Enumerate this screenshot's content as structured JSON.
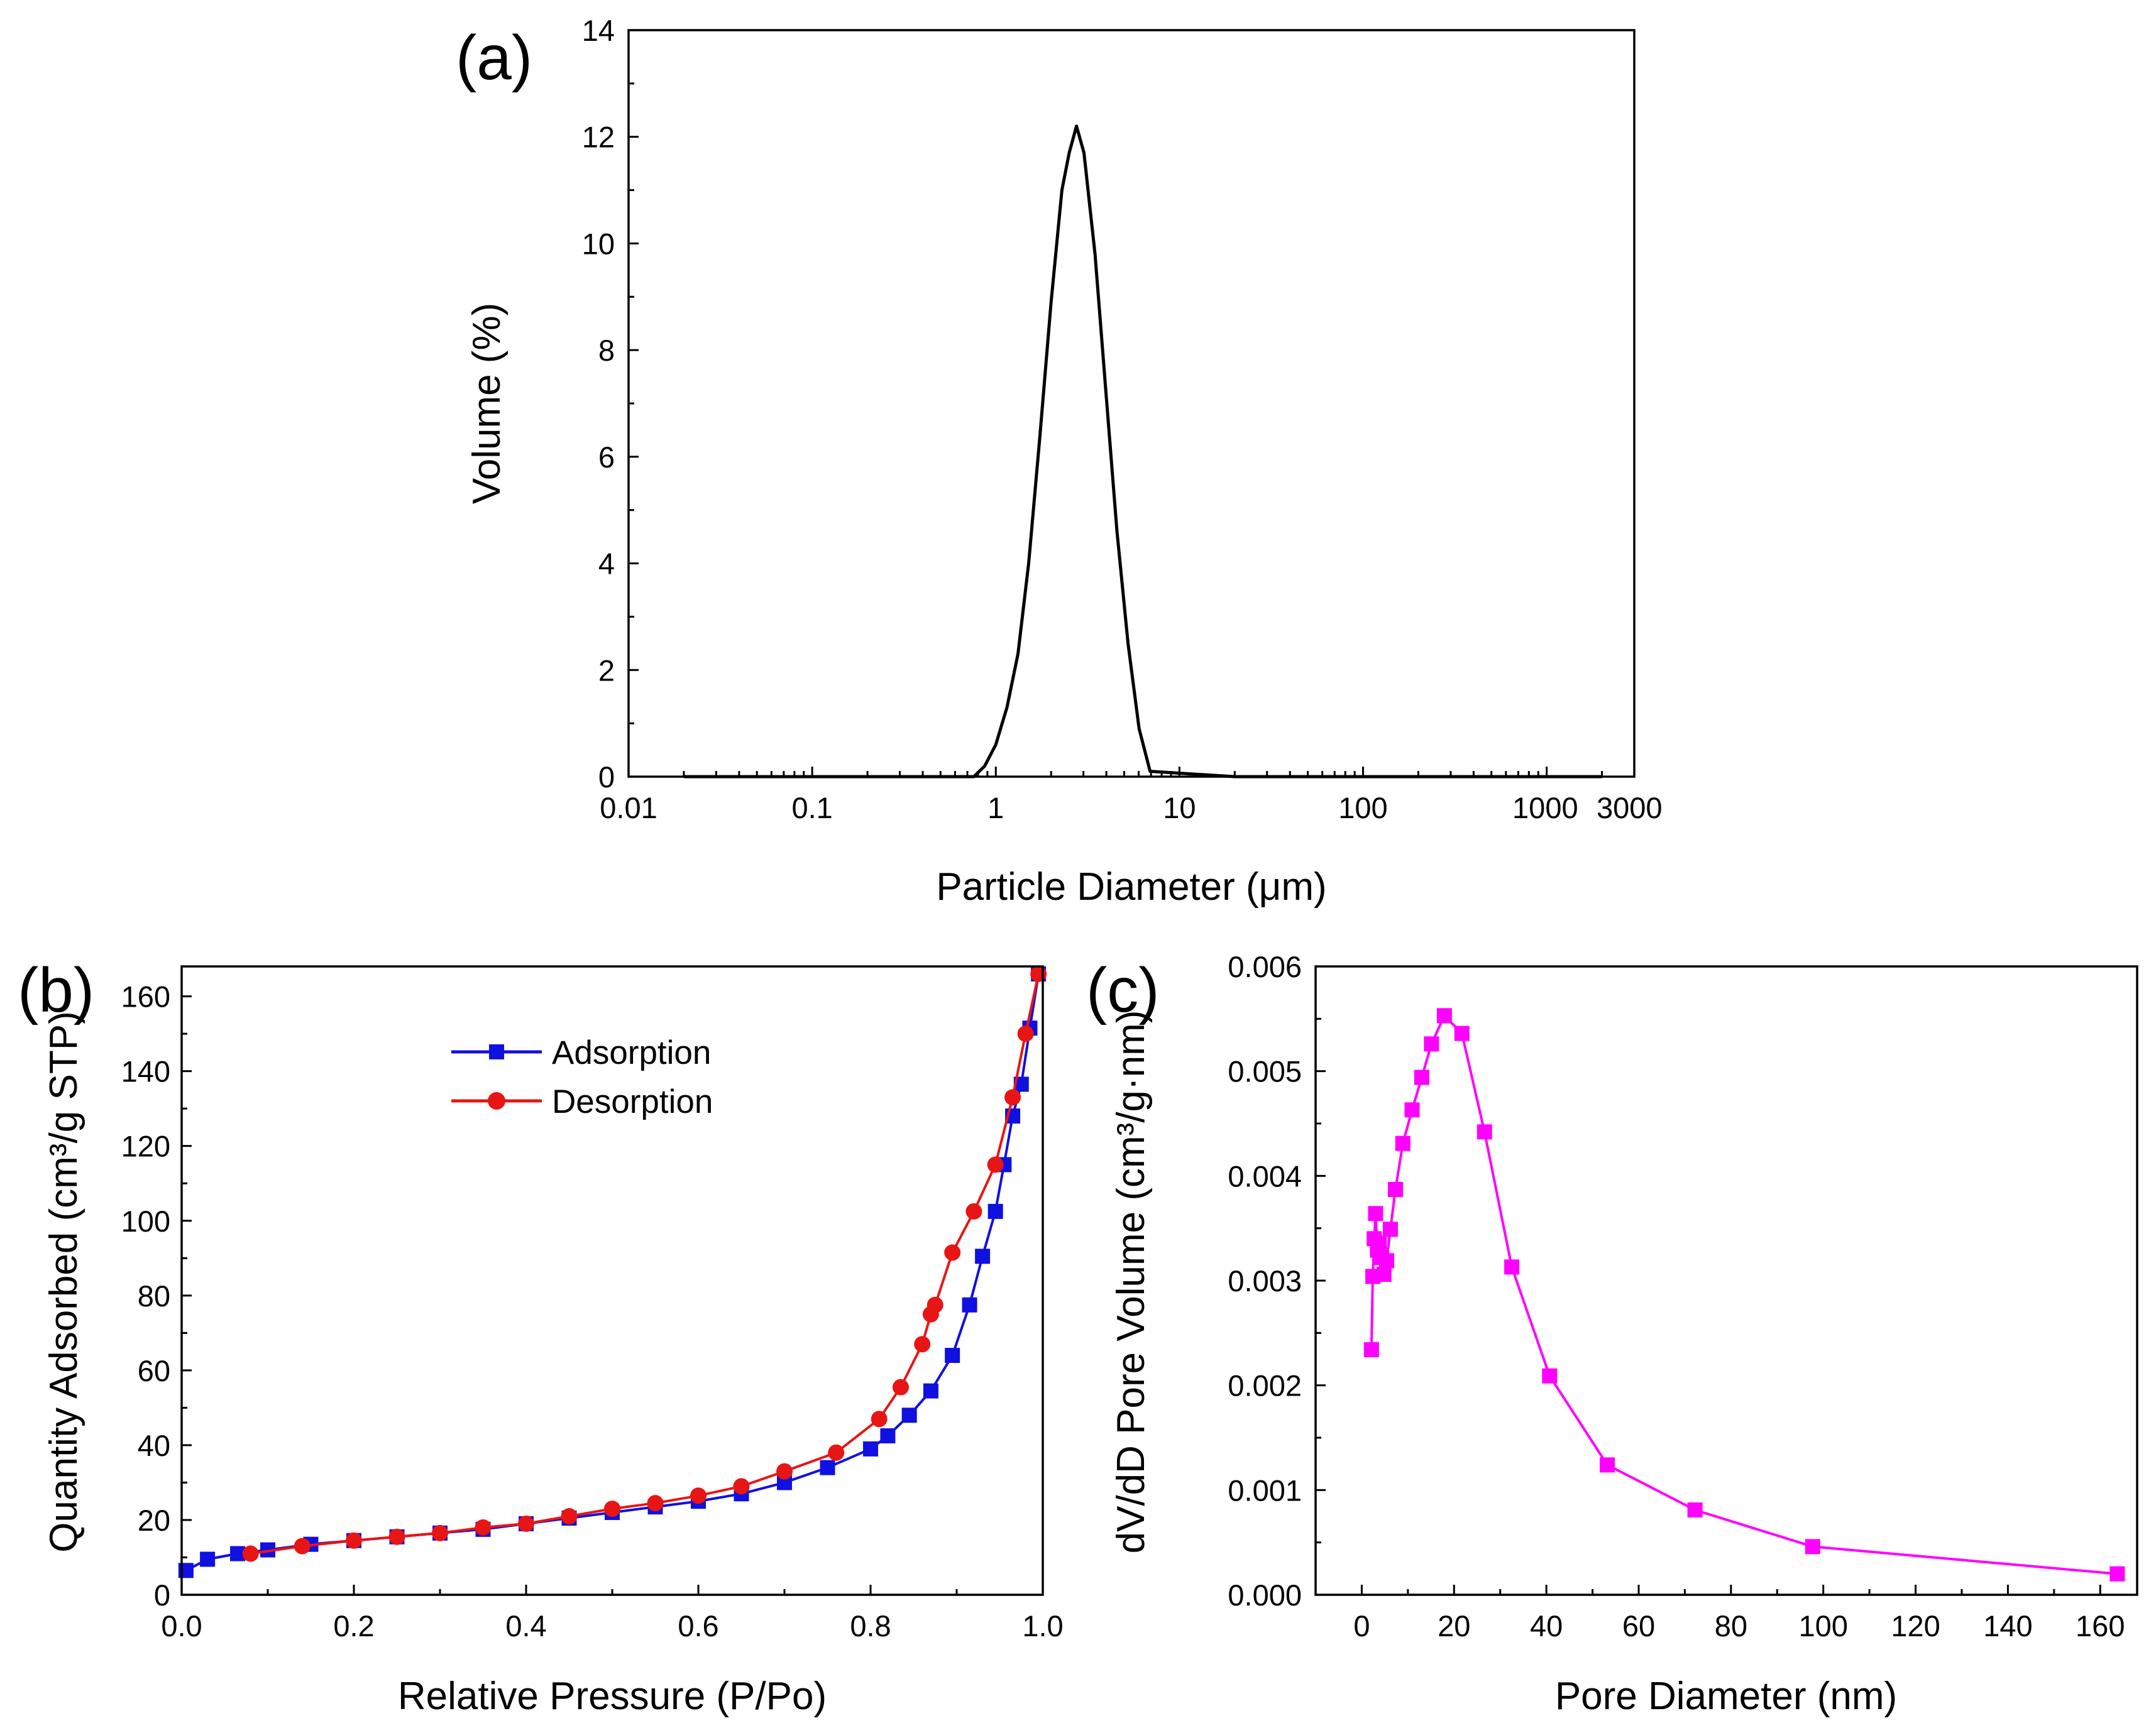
{
  "chart_data": [
    {
      "id": "a",
      "type": "line",
      "panel_label": "(a)",
      "xscale": "log",
      "xlabel": "Particle Diameter (μm)",
      "ylabel": "Volume (%)",
      "xlim": [
        0.01,
        3000
      ],
      "ylim": [
        0,
        14
      ],
      "xticks": [
        0.01,
        0.1,
        1,
        10,
        100,
        1000,
        3000
      ],
      "xtick_labels": [
        "0.01",
        "0.1",
        "1",
        "10",
        "100",
        "1000",
        "3000"
      ],
      "yticks": [
        0,
        2,
        4,
        6,
        8,
        10,
        12,
        14
      ],
      "ytick_labels": [
        "0",
        "2",
        "4",
        "6",
        "8",
        "10",
        "12",
        "14"
      ],
      "legend": "none",
      "grid": false,
      "series": [
        {
          "name": "Volume",
          "color": "#000000",
          "marker": "none",
          "x": [
            0.02,
            0.5,
            0.76,
            0.87,
            1.0,
            1.15,
            1.32,
            1.51,
            1.74,
            2.0,
            2.29,
            2.51,
            2.75,
            3.02,
            3.47,
            3.98,
            4.57,
            5.25,
            6.03,
            6.92,
            20,
            2000
          ],
          "y": [
            0,
            0,
            0,
            0.2,
            0.6,
            1.3,
            2.3,
            4.0,
            6.4,
            8.9,
            11.0,
            11.7,
            12.2,
            11.7,
            9.8,
            7.2,
            4.6,
            2.5,
            0.9,
            0.1,
            0,
            0
          ]
        }
      ]
    },
    {
      "id": "b",
      "type": "line",
      "panel_label": "(b)",
      "xlabel": "Relative Pressure (P/Po)",
      "ylabel": "Quantity Adsorbed (cm³/g STP)",
      "xlim": [
        0,
        1
      ],
      "ylim": [
        0,
        168
      ],
      "xticks": [
        0,
        0.2,
        0.4,
        0.6,
        0.8,
        1.0
      ],
      "xtick_labels": [
        "0.0",
        "0.2",
        "0.4",
        "0.6",
        "0.8",
        "1.0"
      ],
      "yticks": [
        0,
        20,
        40,
        60,
        80,
        100,
        120,
        140,
        160
      ],
      "ytick_labels": [
        "0",
        "20",
        "40",
        "60",
        "80",
        "100",
        "120",
        "140",
        "160"
      ],
      "legend": "upper-left",
      "grid": false,
      "series": [
        {
          "name": "Adsorption",
          "color": "#1010e0",
          "marker": "square",
          "x": [
            0.005,
            0.03,
            0.065,
            0.1,
            0.15,
            0.2,
            0.25,
            0.3,
            0.35,
            0.4,
            0.45,
            0.5,
            0.55,
            0.6,
            0.65,
            0.7,
            0.75,
            0.8,
            0.82,
            0.845,
            0.87,
            0.895,
            0.915,
            0.93,
            0.945,
            0.955,
            0.965,
            0.975,
            0.985,
            0.995
          ],
          "y": [
            6.5,
            9.5,
            11,
            12,
            13.5,
            14.5,
            15.5,
            16.5,
            17.5,
            19,
            20.5,
            22,
            23.5,
            25,
            27,
            30,
            34,
            39,
            42.5,
            48,
            54.5,
            64,
            77.5,
            90.5,
            102.5,
            115,
            128,
            136.5,
            151.5,
            166
          ]
        },
        {
          "name": "Desorption",
          "color": "#e81515",
          "marker": "circle",
          "x": [
            0.995,
            0.98,
            0.965,
            0.945,
            0.92,
            0.895,
            0.875,
            0.87,
            0.86,
            0.835,
            0.81,
            0.76,
            0.7,
            0.65,
            0.6,
            0.55,
            0.5,
            0.45,
            0.4,
            0.35,
            0.3,
            0.25,
            0.2,
            0.14,
            0.08
          ],
          "y": [
            166,
            150,
            133,
            115,
            102.5,
            91.5,
            77.5,
            75,
            67,
            55.5,
            47,
            38,
            33,
            29,
            26.5,
            24.5,
            23,
            21,
            19,
            18,
            16.5,
            15.5,
            14.5,
            13,
            11
          ]
        }
      ]
    },
    {
      "id": "c",
      "type": "line",
      "panel_label": "(c)",
      "xlabel": "Pore Diameter (nm)",
      "ylabel": "dV/dD Pore Volume (cm³/g·nm)",
      "xlim": [
        -10,
        168
      ],
      "ylim": [
        0,
        0.006
      ],
      "xticks": [
        0,
        20,
        40,
        60,
        80,
        100,
        120,
        140,
        160
      ],
      "xtick_labels": [
        "0",
        "20",
        "40",
        "60",
        "80",
        "100",
        "120",
        "140",
        "160"
      ],
      "yticks": [
        0,
        0.001,
        0.002,
        0.003,
        0.004,
        0.005,
        0.006
      ],
      "ytick_labels": [
        "0.000",
        "0.001",
        "0.002",
        "0.003",
        "0.004",
        "0.005",
        "0.006"
      ],
      "legend": "none",
      "grid": false,
      "series": [
        {
          "name": "dV/dD",
          "color": "#ff00ff",
          "marker": "square",
          "x": [
            2.1,
            2.4,
            2.7,
            3.0,
            3.4,
            3.8,
            4.3,
            4.8,
            5.4,
            6.2,
            7.3,
            8.9,
            10.9,
            13.0,
            15.1,
            17.9,
            21.7,
            26.6,
            32.5,
            40.7,
            53.2,
            72.2,
            97.7,
            163.7
          ],
          "y": [
            0.00234,
            0.00304,
            0.0034,
            0.00364,
            0.00329,
            0.00336,
            0.00322,
            0.00306,
            0.00319,
            0.00349,
            0.00387,
            0.00431,
            0.00463,
            0.00494,
            0.00526,
            0.00553,
            0.00536,
            0.00442,
            0.00313,
            0.00209,
            0.00124,
            0.00081,
            0.00046,
            0.0002
          ]
        }
      ]
    }
  ]
}
